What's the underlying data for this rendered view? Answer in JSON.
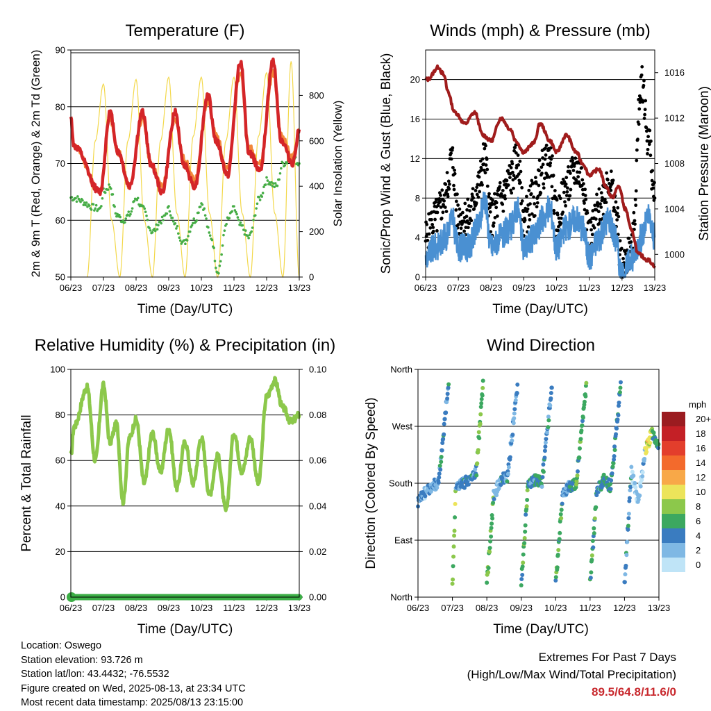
{
  "chart_data": [
    {
      "type": "line",
      "title": "Temperature (F)",
      "xlabel": "Time (Day/UTC)",
      "ylabel": "2m & 9m T (Red, Orange) & 2m Td (Green)",
      "y2label": "Solar Insolation (Yellow)",
      "x_ticks": [
        "06/23",
        "07/23",
        "08/23",
        "09/23",
        "10/23",
        "11/23",
        "12/23",
        "13/23"
      ],
      "ylim": [
        50,
        90
      ],
      "y_ticks": [
        "50",
        "60",
        "70",
        "80",
        "90"
      ],
      "y2lim": [
        0,
        1000
      ],
      "y2_ticks": [
        "0",
        "200",
        "400",
        "600",
        "800"
      ],
      "colors": {
        "t2m": "#d42528",
        "t9m": "#f2873a",
        "td2m": "#46ad46",
        "solar": "#f3d84a"
      },
      "series": [
        {
          "key": "t2m",
          "x": [
            0.0,
            0.1,
            0.9,
            1.2,
            1.45,
            1.8,
            2.2,
            2.45,
            2.8,
            3.2,
            3.45,
            3.8,
            4.2,
            4.45,
            4.8,
            5.2,
            5.45,
            5.8,
            6.2,
            6.45,
            6.8,
            7.0
          ],
          "values": [
            78,
            73,
            65,
            79,
            72,
            66,
            79,
            70,
            65,
            79,
            70,
            66,
            82,
            74,
            68,
            88,
            72,
            69,
            88,
            74,
            70,
            76
          ]
        },
        {
          "key": "t9m",
          "x": [
            0.0,
            0.1,
            0.9,
            1.2,
            1.45,
            1.8,
            2.2,
            2.45,
            2.8,
            3.2,
            3.45,
            3.8,
            4.2,
            4.45,
            4.8,
            5.2,
            5.45,
            5.8,
            6.2,
            6.45,
            6.8,
            7.0
          ],
          "values": [
            77,
            73,
            65,
            78,
            72,
            66,
            78,
            70,
            66,
            78,
            71,
            67,
            81,
            75,
            69,
            86,
            73,
            70,
            86,
            75,
            71,
            76
          ]
        },
        {
          "key": "td2m",
          "x": [
            0.0,
            0.9,
            1.0,
            1.2,
            1.4,
            1.6,
            1.8,
            2.0,
            2.2,
            2.5,
            2.8,
            3.0,
            3.2,
            3.45,
            3.8,
            4.0,
            4.3,
            4.5,
            4.8,
            5.0,
            5.2,
            5.45,
            5.8,
            6.0,
            6.3,
            6.5,
            6.8,
            7.0
          ],
          "values": [
            64,
            62,
            65,
            66,
            61,
            60,
            61,
            64,
            62,
            58,
            60,
            62,
            59,
            56,
            60,
            63,
            57,
            51,
            60,
            62,
            59,
            57,
            64,
            67,
            66,
            70,
            71,
            70
          ]
        },
        {
          "key": "solar",
          "x": [
            0.5,
            0.75,
            1.0,
            1.25,
            1.5,
            1.75,
            2.0,
            2.25,
            2.5,
            2.75,
            3.0,
            3.25,
            3.5,
            3.75,
            4.0,
            4.25,
            4.5,
            4.75,
            5.0,
            5.25,
            5.5,
            5.75,
            6.0,
            6.25,
            6.5,
            6.75,
            7.0
          ],
          "values": [
            0,
            600,
            850,
            250,
            0,
            600,
            870,
            250,
            0,
            600,
            880,
            280,
            0,
            620,
            880,
            280,
            0,
            600,
            880,
            280,
            0,
            620,
            900,
            280,
            0,
            950,
            0
          ]
        }
      ]
    },
    {
      "type": "line",
      "title": "Winds (mph) & Pressure (mb)",
      "xlabel": "Time (Day/UTC)",
      "ylabel": "Sonic/Prop Wind & Gust (Blue, Black)",
      "y2label": "Station Pressure (Maroon)",
      "x_ticks": [
        "06/23",
        "07/23",
        "08/23",
        "09/23",
        "10/23",
        "11/23",
        "12/23",
        "13/23"
      ],
      "ylim": [
        0,
        23
      ],
      "y_ticks": [
        "0",
        "4",
        "8",
        "12",
        "16",
        "20"
      ],
      "y2lim": [
        998,
        1018
      ],
      "y2_ticks": [
        "1000",
        "1004",
        "1008",
        "1012",
        "1016"
      ],
      "colors": {
        "wind": "#4a90d2",
        "gust": "#000000",
        "pressure": "#a01c1c"
      },
      "series": [
        {
          "key": "wind",
          "x": [
            0.0,
            0.3,
            0.6,
            0.8,
            1.0,
            1.3,
            1.6,
            1.8,
            2.0,
            2.3,
            2.6,
            2.8,
            3.0,
            3.3,
            3.6,
            3.8,
            4.0,
            4.3,
            4.6,
            4.8,
            5.0,
            5.3,
            5.6,
            5.8,
            6.0,
            6.3,
            6.6,
            6.8,
            7.0
          ],
          "values": [
            2,
            3,
            4,
            6,
            3,
            3,
            5,
            8,
            3,
            4,
            5,
            7,
            3,
            4,
            6,
            7,
            3,
            5,
            6,
            5,
            2,
            4,
            6,
            4,
            0,
            2,
            4,
            6,
            4
          ]
        },
        {
          "key": "gust",
          "x": [
            0.0,
            0.3,
            0.6,
            0.8,
            1.0,
            1.3,
            1.6,
            1.8,
            2.0,
            2.3,
            2.6,
            2.8,
            3.0,
            3.3,
            3.6,
            3.8,
            4.0,
            4.3,
            4.6,
            4.8,
            5.0,
            5.3,
            5.6,
            5.8,
            6.0,
            6.3,
            6.6,
            6.8,
            7.0
          ],
          "values": [
            4,
            6,
            8,
            12,
            6,
            6,
            9,
            12,
            6,
            8,
            10,
            12,
            6,
            8,
            11,
            12,
            6,
            9,
            11,
            10,
            4,
            7,
            10,
            7,
            1,
            3,
            20,
            14,
            8
          ]
        },
        {
          "key": "pressure",
          "x": [
            0.0,
            0.05,
            0.4,
            0.5,
            0.6,
            0.65,
            0.9,
            1.2,
            1.5,
            1.75,
            2.0,
            2.3,
            2.6,
            2.75,
            3.0,
            3.3,
            3.5,
            3.8,
            4.0,
            4.3,
            4.6,
            4.8,
            5.0,
            5.3,
            5.5,
            5.7,
            5.9,
            6.1,
            6.3,
            6.5,
            6.8,
            7.0
          ],
          "values": [
            1015.5,
            1015.4,
            1016.5,
            1016,
            1015.5,
            1014.5,
            1012.5,
            1011.5,
            1012.5,
            1010.5,
            1010,
            1012,
            1011,
            1010,
            1009,
            1009.8,
            1011.5,
            1010,
            1009,
            1010.5,
            1009,
            1008,
            1007,
            1007.5,
            1006,
            1005,
            1006,
            1004,
            1002,
            1000,
            999.5,
            999
          ]
        }
      ]
    },
    {
      "type": "line",
      "title": "Relative Humidity (%) & Precipitation (in)",
      "xlabel": "Time (Day/UTC)",
      "ylabel": "Percent & Total Rainfall",
      "x_ticks": [
        "06/23",
        "07/23",
        "08/23",
        "09/23",
        "10/23",
        "11/23",
        "12/23",
        "13/23"
      ],
      "ylim": [
        0,
        100
      ],
      "y_ticks": [
        "0",
        "20",
        "40",
        "60",
        "80",
        "100"
      ],
      "y2lim": [
        0,
        0.1
      ],
      "y2_ticks": [
        "0.00",
        "0.02",
        "0.04",
        "0.06",
        "0.08",
        "0.10"
      ],
      "colors": {
        "rh": "#8cc84b",
        "precip": "#3cae46"
      },
      "series": [
        {
          "key": "rh",
          "x": [
            0.0,
            0.1,
            0.5,
            0.75,
            1.0,
            1.2,
            1.4,
            1.6,
            1.8,
            2.0,
            2.25,
            2.5,
            2.75,
            3.0,
            3.25,
            3.5,
            3.75,
            4.0,
            4.25,
            4.5,
            4.75,
            5.0,
            5.25,
            5.5,
            5.75,
            6.0,
            6.25,
            6.5,
            6.75,
            7.0
          ],
          "values": [
            62,
            75,
            92,
            60,
            93,
            68,
            76,
            42,
            70,
            78,
            50,
            72,
            55,
            74,
            48,
            68,
            50,
            70,
            45,
            62,
            38,
            72,
            55,
            70,
            50,
            88,
            95,
            83,
            77,
            80
          ]
        },
        {
          "key": "precip",
          "x": [
            0.0,
            7.0
          ],
          "values": [
            0,
            0
          ]
        }
      ]
    },
    {
      "type": "scatter",
      "title": "Wind Direction",
      "xlabel": "Time (Day/UTC)",
      "ylabel": "Direction (Colored By Speed)",
      "x_ticks": [
        "06/23",
        "07/23",
        "08/23",
        "09/23",
        "10/23",
        "11/23",
        "12/23",
        "13/23"
      ],
      "ylim": [
        0,
        360
      ],
      "y_ticks": [
        "North",
        "East",
        "South",
        "West",
        "North"
      ],
      "legend": {
        "title": "mph",
        "labels": [
          "20+",
          "18",
          "16",
          "14",
          "12",
          "10",
          "8",
          "6",
          "4",
          "2",
          "0"
        ],
        "colors": [
          "#9b1c20",
          "#c42026",
          "#e33e2c",
          "#f36a2c",
          "#f8a848",
          "#ece45a",
          "#8cc84b",
          "#3ca860",
          "#3a7cc0",
          "#7fb8e4",
          "#bfe4f7"
        ]
      },
      "series": [
        {
          "name": "",
          "x": [
            0.0,
            0.2,
            0.4,
            0.6,
            0.9,
            1.0,
            1.1,
            1.3,
            1.5,
            1.7,
            1.9,
            2.0,
            2.2,
            2.4,
            2.6,
            2.9,
            3.0,
            3.2,
            3.4,
            3.6,
            3.9,
            4.0,
            4.2,
            4.4,
            4.6,
            4.9,
            5.0,
            5.2,
            5.4,
            5.6,
            5.9,
            6.0,
            6.2,
            6.4,
            6.6,
            6.8,
            7.0
          ],
          "values": [
            150,
            165,
            175,
            180,
            350,
            20,
            175,
            180,
            185,
            200,
            350,
            20,
            160,
            185,
            190,
            340,
            20,
            180,
            185,
            180,
            340,
            20,
            160,
            175,
            180,
            340,
            20,
            170,
            185,
            175,
            340,
            20,
            200,
            150,
            230,
            260,
            240
          ],
          "speed": [
            3,
            2,
            3,
            4,
            6,
            8,
            3,
            4,
            4,
            7,
            6,
            7,
            2,
            4,
            3,
            8,
            6,
            4,
            5,
            4,
            8,
            6,
            3,
            5,
            6,
            7,
            6,
            4,
            5,
            5,
            8,
            4,
            1,
            2,
            10,
            6,
            5
          ]
        }
      ]
    }
  ],
  "info": {
    "location": "Location: Oswego",
    "elevation": "Station elevation: 93.726 m",
    "latlon": "Station lat/lon: 43.4432; -76.5532",
    "created": "Figure created on Wed, 2025-08-13, at 23:34 UTC",
    "recent": "Most recent data timestamp: 2025/08/13 23:15:00"
  },
  "extremes": {
    "line1": "Extremes For Past 7 Days",
    "line2": "(High/Low/Max Wind/Total Precipitation)",
    "values": "89.5/64.8/11.6/0"
  }
}
